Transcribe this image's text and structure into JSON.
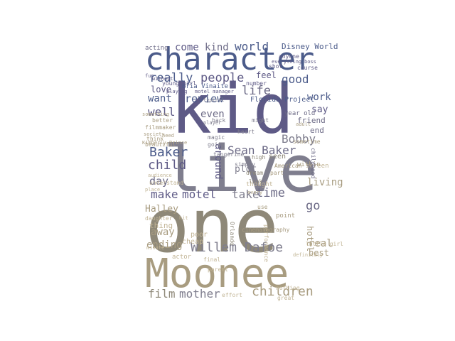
{
  "colors": {
    "palette": [
      "#4b5b8a",
      "#5e5a86",
      "#6c6a86",
      "#7f7e8e",
      "#8e8878",
      "#a89c80",
      "#c2b596",
      "#d9cdb0"
    ]
  },
  "words": [
    "character",
    "kid",
    "live",
    "one",
    "Moonee",
    "really",
    "people",
    "review",
    "life",
    "come",
    "kind",
    "world",
    "Baker",
    "child",
    "day",
    "make",
    "motel",
    "take",
    "time",
    "go",
    "Willem Dafoe",
    "film",
    "mother",
    "children",
    "Sean Baker",
    "Bobby",
    "good",
    "work",
    "say",
    "well",
    "want",
    "love",
    "even",
    "plot",
    "Halley",
    "away",
    "ending",
    "hotel",
    "real",
    "best",
    "living",
    "around",
    "Disney World",
    "feel",
    "acting",
    "Florida Project",
    "Bria Vinaite",
    "end",
    "friend",
    "year old",
    "something",
    "better",
    "filmmaker",
    "society",
    "think",
    "need",
    "audience",
    "understand",
    "place",
    "daughter",
    "thing",
    "poor",
    "cheap",
    "actor",
    "Orlando",
    "definitely",
    "performance",
    "simply",
    "heart",
    "might",
    "seen",
    "every",
    "thought",
    "part",
    "within",
    "screen",
    "American",
    "adult",
    "sometime",
    "nothing",
    "young girl",
    "fun",
    "without",
    "number",
    "shot",
    "everything",
    "anyone",
    "course",
    "little girl",
    "magic",
    "back",
    "going",
    "tangerine",
    "look",
    "dream",
    "high",
    "point",
    "use",
    "hit",
    "final",
    "minute",
    "parent",
    "effort",
    "great",
    "childhood",
    "Kimberly Prince",
    "beautiful",
    "player",
    "cinematography",
    "motel manager",
    "playing",
    "typical",
    "boss",
    "fringe",
    "budget"
  ]
}
